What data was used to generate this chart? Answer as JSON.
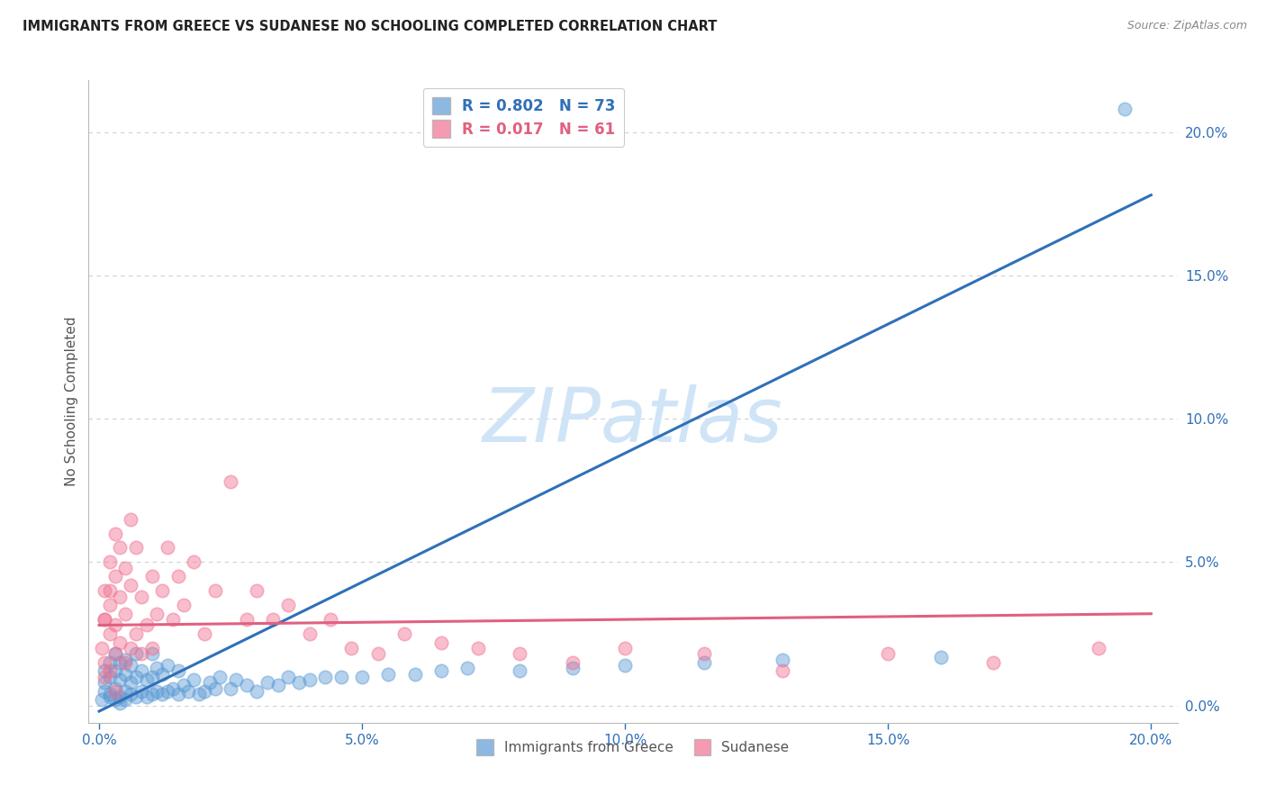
{
  "title": "IMMIGRANTS FROM GREECE VS SUDANESE NO SCHOOLING COMPLETED CORRELATION CHART",
  "source": "Source: ZipAtlas.com",
  "ylabel": "No Schooling Completed",
  "legend1_r": "R = 0.802",
  "legend1_n": "N = 73",
  "legend2_r": "R = 0.017",
  "legend2_n": "N = 61",
  "blue_color": "#5b9bd5",
  "pink_color": "#f07090",
  "blue_line_color": "#3070b8",
  "pink_line_color": "#e06080",
  "watermark": "ZIPatlas",
  "watermark_color": "#d0e4f7",
  "greece_x": [
    0.0005,
    0.001,
    0.001,
    0.001,
    0.002,
    0.002,
    0.002,
    0.002,
    0.003,
    0.003,
    0.003,
    0.003,
    0.004,
    0.004,
    0.004,
    0.004,
    0.005,
    0.005,
    0.005,
    0.005,
    0.006,
    0.006,
    0.006,
    0.007,
    0.007,
    0.007,
    0.008,
    0.008,
    0.009,
    0.009,
    0.01,
    0.01,
    0.01,
    0.011,
    0.011,
    0.012,
    0.012,
    0.013,
    0.013,
    0.014,
    0.015,
    0.015,
    0.016,
    0.017,
    0.018,
    0.019,
    0.02,
    0.021,
    0.022,
    0.023,
    0.025,
    0.026,
    0.028,
    0.03,
    0.032,
    0.034,
    0.036,
    0.038,
    0.04,
    0.043,
    0.046,
    0.05,
    0.055,
    0.06,
    0.065,
    0.07,
    0.08,
    0.09,
    0.1,
    0.115,
    0.13,
    0.16,
    0.195
  ],
  "greece_y": [
    0.002,
    0.008,
    0.005,
    0.012,
    0.004,
    0.01,
    0.003,
    0.015,
    0.006,
    0.002,
    0.012,
    0.018,
    0.003,
    0.009,
    0.015,
    0.001,
    0.005,
    0.011,
    0.002,
    0.016,
    0.004,
    0.008,
    0.014,
    0.003,
    0.01,
    0.018,
    0.005,
    0.012,
    0.003,
    0.009,
    0.004,
    0.01,
    0.018,
    0.005,
    0.013,
    0.004,
    0.011,
    0.005,
    0.014,
    0.006,
    0.004,
    0.012,
    0.007,
    0.005,
    0.009,
    0.004,
    0.005,
    0.008,
    0.006,
    0.01,
    0.006,
    0.009,
    0.007,
    0.005,
    0.008,
    0.007,
    0.01,
    0.008,
    0.009,
    0.01,
    0.01,
    0.01,
    0.011,
    0.011,
    0.012,
    0.013,
    0.012,
    0.013,
    0.014,
    0.015,
    0.016,
    0.017,
    0.208
  ],
  "sudanese_x": [
    0.0005,
    0.001,
    0.001,
    0.001,
    0.001,
    0.002,
    0.002,
    0.002,
    0.002,
    0.003,
    0.003,
    0.003,
    0.003,
    0.004,
    0.004,
    0.004,
    0.005,
    0.005,
    0.005,
    0.006,
    0.006,
    0.006,
    0.007,
    0.007,
    0.008,
    0.008,
    0.009,
    0.01,
    0.01,
    0.011,
    0.012,
    0.013,
    0.014,
    0.015,
    0.016,
    0.018,
    0.02,
    0.022,
    0.025,
    0.028,
    0.03,
    0.033,
    0.036,
    0.04,
    0.044,
    0.048,
    0.053,
    0.058,
    0.065,
    0.072,
    0.08,
    0.09,
    0.1,
    0.115,
    0.13,
    0.15,
    0.17,
    0.19,
    0.001,
    0.002,
    0.003
  ],
  "sudanese_y": [
    0.02,
    0.03,
    0.015,
    0.04,
    0.01,
    0.025,
    0.035,
    0.05,
    0.012,
    0.028,
    0.045,
    0.018,
    0.06,
    0.022,
    0.038,
    0.055,
    0.015,
    0.032,
    0.048,
    0.02,
    0.042,
    0.065,
    0.025,
    0.055,
    0.018,
    0.038,
    0.028,
    0.02,
    0.045,
    0.032,
    0.04,
    0.055,
    0.03,
    0.045,
    0.035,
    0.05,
    0.025,
    0.04,
    0.078,
    0.03,
    0.04,
    0.03,
    0.035,
    0.025,
    0.03,
    0.02,
    0.018,
    0.025,
    0.022,
    0.02,
    0.018,
    0.015,
    0.02,
    0.018,
    0.012,
    0.018,
    0.015,
    0.02,
    0.03,
    0.04,
    0.005
  ],
  "blue_line_x": [
    0.0,
    0.2
  ],
  "blue_line_y": [
    -0.002,
    0.178
  ],
  "pink_line_x": [
    0.0,
    0.2
  ],
  "pink_line_y": [
    0.028,
    0.032
  ],
  "xlim": [
    -0.002,
    0.205
  ],
  "ylim": [
    -0.006,
    0.218
  ],
  "xticks": [
    0.0,
    0.05,
    0.1,
    0.15,
    0.2
  ],
  "yticks": [
    0.0,
    0.05,
    0.1,
    0.15,
    0.2
  ]
}
